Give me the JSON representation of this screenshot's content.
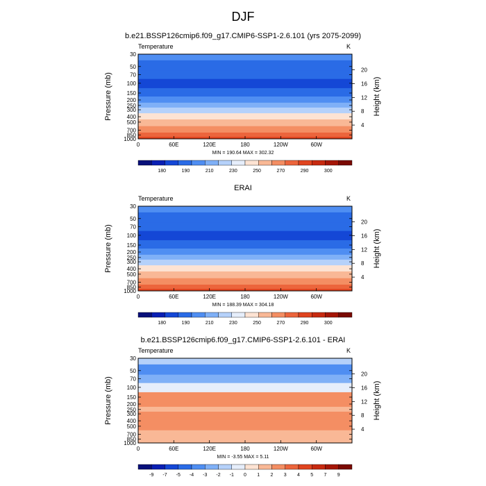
{
  "figure": {
    "title": "DJF"
  },
  "chart_data": [
    {
      "type": "heatmap",
      "title": "b.e21.BSSP126cmip6.f09_g17.CMIP6-SSP1-2.6.101 (yrs 2075-2099)",
      "left_label": "Temperature",
      "right_label": "K",
      "ylabel": "Pressure (mb)",
      "ylabel_right": "Height (km)",
      "pressure_ticks": [
        "30",
        "50",
        "70",
        "100",
        "150",
        "200",
        "250",
        "300",
        "400",
        "500",
        "700",
        "850",
        "1000"
      ],
      "height_ticks": [
        "20",
        "16",
        "12",
        "8",
        "4"
      ],
      "x_ticks": [
        "0",
        "60E",
        "120E",
        "180",
        "120W",
        "60W"
      ],
      "stats": "MIN = 190.64  MAX = 302.32",
      "colorbar_labels": [
        "180",
        "190",
        "210",
        "230",
        "250",
        "270",
        "290",
        "300"
      ],
      "colorbar_colors": [
        "#08107a",
        "#0a1fb3",
        "#1447d6",
        "#2a6be6",
        "#4f8ef2",
        "#7fb0f7",
        "#b5d1fa",
        "#e6eefb",
        "#fde3d3",
        "#f9b896",
        "#f48e63",
        "#ec653c",
        "#e0441f",
        "#c72a10",
        "#a51606",
        "#7a0a02"
      ],
      "bands": [
        {
          "p": 30,
          "color": "#4f8ef2"
        },
        {
          "p": 50,
          "color": "#2a6be6"
        },
        {
          "p": 70,
          "color": "#2a6be6"
        },
        {
          "p": 100,
          "color": "#1447d6"
        },
        {
          "p": 150,
          "color": "#2a6be6"
        },
        {
          "p": 200,
          "color": "#4f8ef2"
        },
        {
          "p": 250,
          "color": "#7fb0f7"
        },
        {
          "p": 300,
          "color": "#b5d1fa"
        },
        {
          "p": 400,
          "color": "#fde3d3"
        },
        {
          "p": 500,
          "color": "#f9b896"
        },
        {
          "p": 700,
          "color": "#f48e63"
        },
        {
          "p": 850,
          "color": "#ec653c"
        },
        {
          "p": 1000,
          "color": "#e0441f"
        }
      ]
    },
    {
      "type": "heatmap",
      "title": "ERAI",
      "left_label": "Temperature",
      "right_label": "K",
      "ylabel": "Pressure (mb)",
      "ylabel_right": "Height (km)",
      "pressure_ticks": [
        "30",
        "50",
        "70",
        "100",
        "150",
        "200",
        "250",
        "300",
        "400",
        "500",
        "700",
        "850",
        "1000"
      ],
      "height_ticks": [
        "20",
        "16",
        "12",
        "8",
        "4"
      ],
      "x_ticks": [
        "0",
        "60E",
        "120E",
        "180",
        "120W",
        "60W"
      ],
      "stats": "MIN = 188.39  MAX = 304.18",
      "colorbar_labels": [
        "180",
        "190",
        "210",
        "230",
        "250",
        "270",
        "290",
        "300"
      ],
      "colorbar_colors": [
        "#08107a",
        "#0a1fb3",
        "#1447d6",
        "#2a6be6",
        "#4f8ef2",
        "#7fb0f7",
        "#b5d1fa",
        "#e6eefb",
        "#fde3d3",
        "#f9b896",
        "#f48e63",
        "#ec653c",
        "#e0441f",
        "#c72a10",
        "#a51606",
        "#7a0a02"
      ],
      "bands": [
        {
          "p": 30,
          "color": "#4f8ef2"
        },
        {
          "p": 50,
          "color": "#2a6be6"
        },
        {
          "p": 70,
          "color": "#2a6be6"
        },
        {
          "p": 100,
          "color": "#1447d6"
        },
        {
          "p": 150,
          "color": "#2a6be6"
        },
        {
          "p": 200,
          "color": "#4f8ef2"
        },
        {
          "p": 250,
          "color": "#7fb0f7"
        },
        {
          "p": 300,
          "color": "#b5d1fa"
        },
        {
          "p": 400,
          "color": "#fde3d3"
        },
        {
          "p": 500,
          "color": "#f9b896"
        },
        {
          "p": 700,
          "color": "#f48e63"
        },
        {
          "p": 850,
          "color": "#ec653c"
        },
        {
          "p": 1000,
          "color": "#e0441f"
        }
      ]
    },
    {
      "type": "heatmap",
      "title": "b.e21.BSSP126cmip6.f09_g17.CMIP6-SSP1-2.6.101 - ERAI",
      "left_label": "Temperature",
      "right_label": "K",
      "ylabel": "Pressure (mb)",
      "ylabel_right": "Height (km)",
      "pressure_ticks": [
        "30",
        "50",
        "70",
        "100",
        "150",
        "200",
        "250",
        "300",
        "400",
        "500",
        "700",
        "850",
        "1000"
      ],
      "height_ticks": [
        "20",
        "16",
        "12",
        "8",
        "4"
      ],
      "x_ticks": [
        "0",
        "60E",
        "120E",
        "180",
        "120W",
        "60W"
      ],
      "stats": "MIN = -3.55  MAX = 5.11",
      "colorbar_labels": [
        "-9",
        "-7",
        "-5",
        "-4",
        "-3",
        "-2",
        "-1",
        "0",
        "1",
        "2",
        "3",
        "4",
        "5",
        "7",
        "9"
      ],
      "colorbar_colors": [
        "#08107a",
        "#0a1fb3",
        "#1447d6",
        "#2a6be6",
        "#4f8ef2",
        "#7fb0f7",
        "#b5d1fa",
        "#e6eefb",
        "#fde3d3",
        "#f9b896",
        "#f48e63",
        "#ec653c",
        "#e0441f",
        "#c72a10",
        "#a51606",
        "#7a0a02"
      ],
      "bands": [
        {
          "p": 30,
          "color": "#b5d1fa"
        },
        {
          "p": 50,
          "color": "#4f8ef2"
        },
        {
          "p": 70,
          "color": "#7fb0f7"
        },
        {
          "p": 100,
          "color": "#e6eefb"
        },
        {
          "p": 150,
          "color": "#f48e63"
        },
        {
          "p": 200,
          "color": "#f48e63"
        },
        {
          "p": 250,
          "color": "#f9b896"
        },
        {
          "p": 300,
          "color": "#f48e63"
        },
        {
          "p": 400,
          "color": "#f48e63"
        },
        {
          "p": 500,
          "color": "#f48e63"
        },
        {
          "p": 700,
          "color": "#f9b896"
        },
        {
          "p": 850,
          "color": "#f9b896"
        },
        {
          "p": 1000,
          "color": "#f9b896"
        }
      ]
    }
  ]
}
